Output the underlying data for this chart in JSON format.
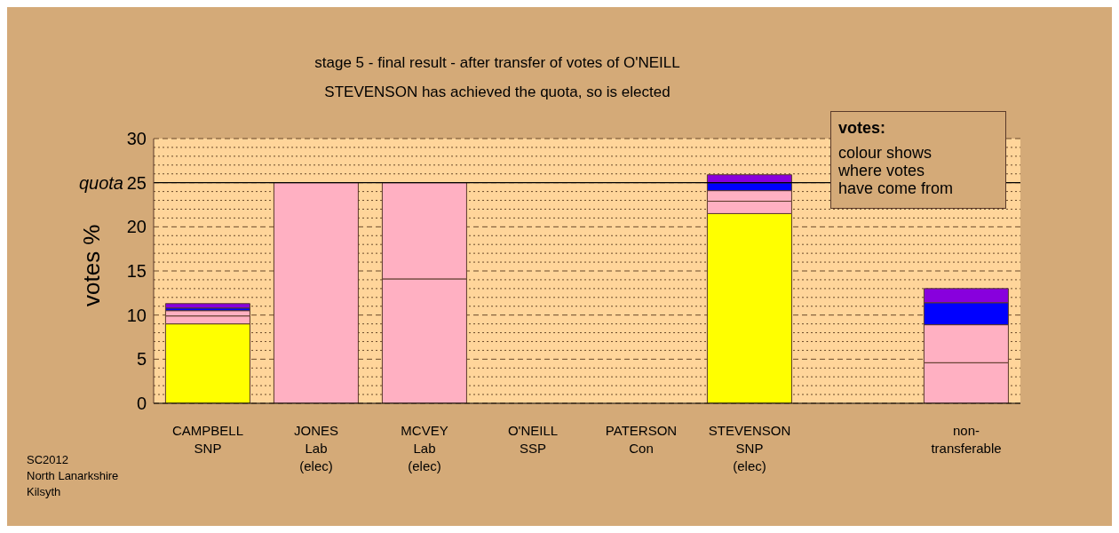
{
  "chart_data": {
    "type": "bar",
    "stacked": true,
    "title": "stage 5 - final result - after transfer of votes of O'NEILL",
    "subtitle": "STEVENSON has achieved the quota, so is elected",
    "ylabel": "votes %",
    "categories": [
      "CAMPBELL\nSNP",
      "JONES\nLab\n(elec)",
      "MCVEY\nLab\n(elec)",
      "O'NEILL\nSSP",
      "PATERSON\nCon",
      "STEVENSON\nSNP\n(elec)",
      null,
      "non-\ntransferable"
    ],
    "series": [
      {
        "color": "#ffff00",
        "values": [
          9.0,
          null,
          null,
          null,
          null,
          21.5,
          null,
          null
        ]
      },
      {
        "color": "#ffb0c2",
        "values": [
          0.9,
          25,
          14.1,
          null,
          null,
          1.4,
          null,
          4.6
        ]
      },
      {
        "color": "#ffb0c2",
        "values": [
          0.6,
          null,
          10.9,
          null,
          null,
          1.2,
          null,
          4.3
        ]
      },
      {
        "color": "#0000ff",
        "values": [
          0.3,
          null,
          null,
          null,
          null,
          0.9,
          null,
          2.5
        ]
      },
      {
        "color": "#8800dd",
        "values": [
          0.5,
          null,
          null,
          null,
          null,
          0.9,
          null,
          1.6
        ]
      }
    ],
    "ylim": [
      0,
      30
    ],
    "yticks": [
      0,
      {
        "value": 1,
        "label": null
      },
      {
        "value": 2,
        "label": null
      },
      {
        "value": 3,
        "label": null
      },
      {
        "value": 4,
        "label": null
      },
      5,
      {
        "value": 6,
        "label": null
      },
      {
        "value": 7,
        "label": null
      },
      {
        "value": 8,
        "label": null
      },
      {
        "value": 9,
        "label": null
      },
      10,
      {
        "value": 11,
        "label": null
      },
      {
        "value": 12,
        "label": null
      },
      {
        "value": 13,
        "label": null
      },
      {
        "value": 14,
        "label": null
      },
      15,
      {
        "value": 16,
        "label": null
      },
      {
        "value": 17,
        "label": null
      },
      {
        "value": 18,
        "label": null
      },
      {
        "value": 19,
        "label": null
      },
      20,
      {
        "value": 21,
        "label": null
      },
      {
        "value": 22,
        "label": null
      },
      {
        "value": 23,
        "label": null
      },
      {
        "value": 24,
        "label": null
      },
      25,
      {
        "value": 26,
        "label": null
      },
      {
        "value": 27,
        "label": null
      },
      {
        "value": 28,
        "label": null
      },
      {
        "value": 29,
        "label": null
      },
      30
    ],
    "grid": "y",
    "legend": false,
    "ref_lines": [
      {
        "axis": "y",
        "value": 25,
        "label": "quota",
        "color": "#000000",
        "line_style": "solid"
      }
    ],
    "annotations": [
      "SC2012",
      "North Lanarkshire",
      "Kilsyth",
      "votes:",
      "colour shows\nwhere votes\nhave come from"
    ]
  }
}
